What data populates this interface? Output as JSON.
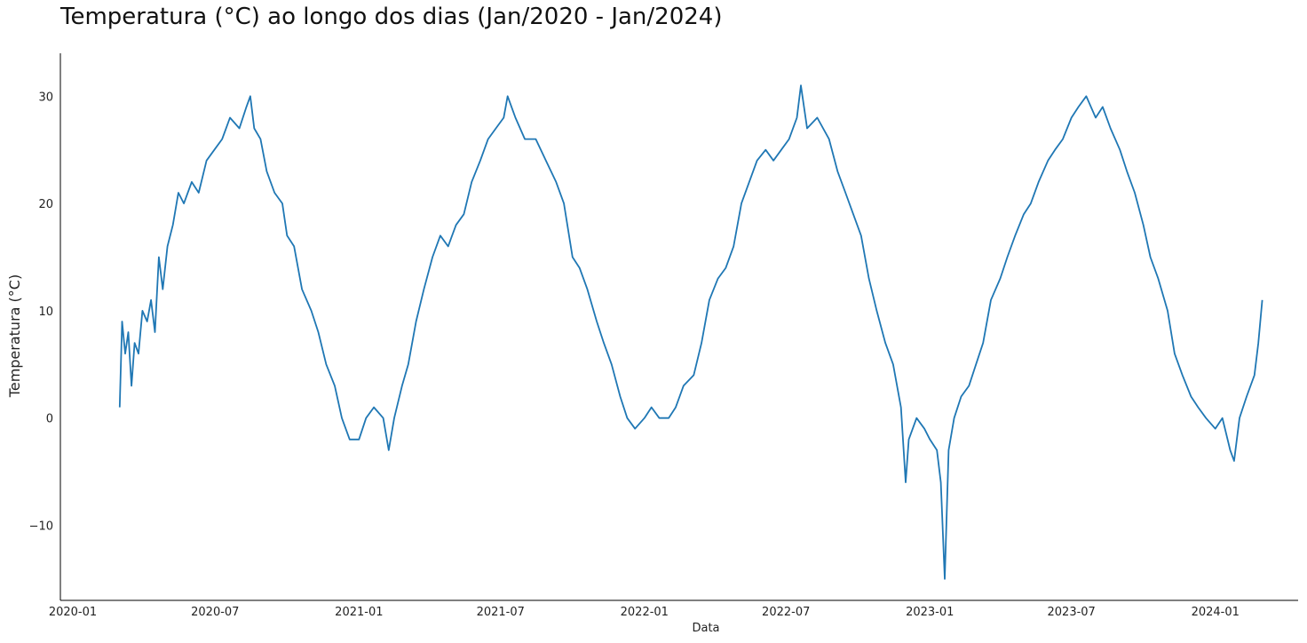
{
  "chart_data": {
    "type": "line",
    "title": "Temperatura (°C) ao longo dos dias (Jan/2020 - Jan/2024)",
    "xlabel": "Data",
    "ylabel": "Temperatura (°C)",
    "x_tick_labels": [
      "2020-01",
      "2020-07",
      "2021-01",
      "2021-07",
      "2022-01",
      "2022-07",
      "2023-01",
      "2023-07",
      "2024-01"
    ],
    "y_tick_labels": [
      "−10",
      "0",
      "10",
      "20",
      "30"
    ],
    "y_ticks": [
      -10,
      0,
      10,
      20,
      30
    ],
    "xlim": [
      "2020-01-01",
      "2024-03-31"
    ],
    "ylim": [
      -17,
      34
    ],
    "grid": false,
    "line_color": "#1f77b4",
    "series": [
      {
        "points": [
          [
            "2020-03-01",
            1
          ],
          [
            "2020-03-04",
            9
          ],
          [
            "2020-03-08",
            6
          ],
          [
            "2020-03-12",
            8
          ],
          [
            "2020-03-16",
            3
          ],
          [
            "2020-03-20",
            7
          ],
          [
            "2020-03-25",
            6
          ],
          [
            "2020-03-30",
            10
          ],
          [
            "2020-04-05",
            9
          ],
          [
            "2020-04-10",
            11
          ],
          [
            "2020-04-15",
            8
          ],
          [
            "2020-04-20",
            15
          ],
          [
            "2020-04-25",
            12
          ],
          [
            "2020-05-01",
            16
          ],
          [
            "2020-05-08",
            18
          ],
          [
            "2020-05-15",
            21
          ],
          [
            "2020-05-22",
            20
          ],
          [
            "2020-06-01",
            22
          ],
          [
            "2020-06-10",
            21
          ],
          [
            "2020-06-20",
            24
          ],
          [
            "2020-06-30",
            25
          ],
          [
            "2020-07-10",
            26
          ],
          [
            "2020-07-20",
            28
          ],
          [
            "2020-08-01",
            27
          ],
          [
            "2020-08-10",
            29
          ],
          [
            "2020-08-15",
            30
          ],
          [
            "2020-08-20",
            27
          ],
          [
            "2020-08-28",
            26
          ],
          [
            "2020-09-05",
            23
          ],
          [
            "2020-09-15",
            21
          ],
          [
            "2020-09-25",
            20
          ],
          [
            "2020-10-01",
            17
          ],
          [
            "2020-10-10",
            16
          ],
          [
            "2020-10-20",
            12
          ],
          [
            "2020-11-01",
            10
          ],
          [
            "2020-11-10",
            8
          ],
          [
            "2020-11-20",
            5
          ],
          [
            "2020-12-01",
            3
          ],
          [
            "2020-12-10",
            0
          ],
          [
            "2020-12-20",
            -2
          ],
          [
            "2021-01-01",
            -2
          ],
          [
            "2021-01-10",
            0
          ],
          [
            "2021-01-20",
            1
          ],
          [
            "2021-02-01",
            0
          ],
          [
            "2021-02-08",
            -3
          ],
          [
            "2021-02-15",
            0
          ],
          [
            "2021-02-25",
            3
          ],
          [
            "2021-03-05",
            5
          ],
          [
            "2021-03-15",
            9
          ],
          [
            "2021-03-25",
            12
          ],
          [
            "2021-04-05",
            15
          ],
          [
            "2021-04-15",
            17
          ],
          [
            "2021-04-25",
            16
          ],
          [
            "2021-05-05",
            18
          ],
          [
            "2021-05-15",
            19
          ],
          [
            "2021-05-25",
            22
          ],
          [
            "2021-06-05",
            24
          ],
          [
            "2021-06-15",
            26
          ],
          [
            "2021-06-25",
            27
          ],
          [
            "2021-07-05",
            28
          ],
          [
            "2021-07-10",
            30
          ],
          [
            "2021-07-20",
            28
          ],
          [
            "2021-08-01",
            26
          ],
          [
            "2021-08-15",
            26
          ],
          [
            "2021-08-28",
            24
          ],
          [
            "2021-09-10",
            22
          ],
          [
            "2021-09-20",
            20
          ],
          [
            "2021-10-01",
            15
          ],
          [
            "2021-10-10",
            14
          ],
          [
            "2021-10-20",
            12
          ],
          [
            "2021-11-01",
            9
          ],
          [
            "2021-11-10",
            7
          ],
          [
            "2021-11-20",
            5
          ],
          [
            "2021-12-01",
            2
          ],
          [
            "2021-12-10",
            0
          ],
          [
            "2021-12-20",
            -1
          ],
          [
            "2022-01-01",
            0
          ],
          [
            "2022-01-10",
            1
          ],
          [
            "2022-01-20",
            0
          ],
          [
            "2022-02-01",
            0
          ],
          [
            "2022-02-10",
            1
          ],
          [
            "2022-02-20",
            3
          ],
          [
            "2022-03-05",
            4
          ],
          [
            "2022-03-15",
            7
          ],
          [
            "2022-03-25",
            11
          ],
          [
            "2022-04-05",
            13
          ],
          [
            "2022-04-15",
            14
          ],
          [
            "2022-04-25",
            16
          ],
          [
            "2022-05-05",
            20
          ],
          [
            "2022-05-15",
            22
          ],
          [
            "2022-05-25",
            24
          ],
          [
            "2022-06-05",
            25
          ],
          [
            "2022-06-15",
            24
          ],
          [
            "2022-06-25",
            25
          ],
          [
            "2022-07-05",
            26
          ],
          [
            "2022-07-15",
            28
          ],
          [
            "2022-07-20",
            31
          ],
          [
            "2022-07-28",
            27
          ],
          [
            "2022-08-10",
            28
          ],
          [
            "2022-08-25",
            26
          ],
          [
            "2022-09-05",
            23
          ],
          [
            "2022-09-15",
            21
          ],
          [
            "2022-09-25",
            19
          ],
          [
            "2022-10-05",
            17
          ],
          [
            "2022-10-15",
            13
          ],
          [
            "2022-10-25",
            10
          ],
          [
            "2022-11-05",
            7
          ],
          [
            "2022-11-15",
            5
          ],
          [
            "2022-11-25",
            1
          ],
          [
            "2022-12-01",
            -6
          ],
          [
            "2022-12-05",
            -2
          ],
          [
            "2022-12-15",
            0
          ],
          [
            "2022-12-25",
            -1
          ],
          [
            "2023-01-01",
            -2
          ],
          [
            "2023-01-10",
            -3
          ],
          [
            "2023-01-15",
            -6
          ],
          [
            "2023-01-20",
            -15
          ],
          [
            "2023-01-25",
            -3
          ],
          [
            "2023-02-01",
            0
          ],
          [
            "2023-02-10",
            2
          ],
          [
            "2023-02-20",
            3
          ],
          [
            "2023-03-01",
            5
          ],
          [
            "2023-03-10",
            7
          ],
          [
            "2023-03-20",
            11
          ],
          [
            "2023-04-01",
            13
          ],
          [
            "2023-04-10",
            15
          ],
          [
            "2023-04-20",
            17
          ],
          [
            "2023-05-01",
            19
          ],
          [
            "2023-05-10",
            20
          ],
          [
            "2023-05-20",
            22
          ],
          [
            "2023-06-01",
            24
          ],
          [
            "2023-06-10",
            25
          ],
          [
            "2023-06-20",
            26
          ],
          [
            "2023-07-01",
            28
          ],
          [
            "2023-07-10",
            29
          ],
          [
            "2023-07-20",
            30
          ],
          [
            "2023-08-01",
            28
          ],
          [
            "2023-08-10",
            29
          ],
          [
            "2023-08-20",
            27
          ],
          [
            "2023-09-01",
            25
          ],
          [
            "2023-09-10",
            23
          ],
          [
            "2023-09-20",
            21
          ],
          [
            "2023-10-01",
            18
          ],
          [
            "2023-10-10",
            15
          ],
          [
            "2023-10-20",
            13
          ],
          [
            "2023-11-01",
            10
          ],
          [
            "2023-11-10",
            6
          ],
          [
            "2023-11-20",
            4
          ],
          [
            "2023-12-01",
            2
          ],
          [
            "2023-12-10",
            1
          ],
          [
            "2023-12-20",
            0
          ],
          [
            "2024-01-01",
            -1
          ],
          [
            "2024-01-10",
            0
          ],
          [
            "2024-01-20",
            -3
          ],
          [
            "2024-01-25",
            -4
          ],
          [
            "2024-02-01",
            0
          ],
          [
            "2024-02-10",
            2
          ],
          [
            "2024-02-20",
            4
          ],
          [
            "2024-02-25",
            7
          ],
          [
            "2024-03-01",
            11
          ]
        ]
      }
    ]
  }
}
